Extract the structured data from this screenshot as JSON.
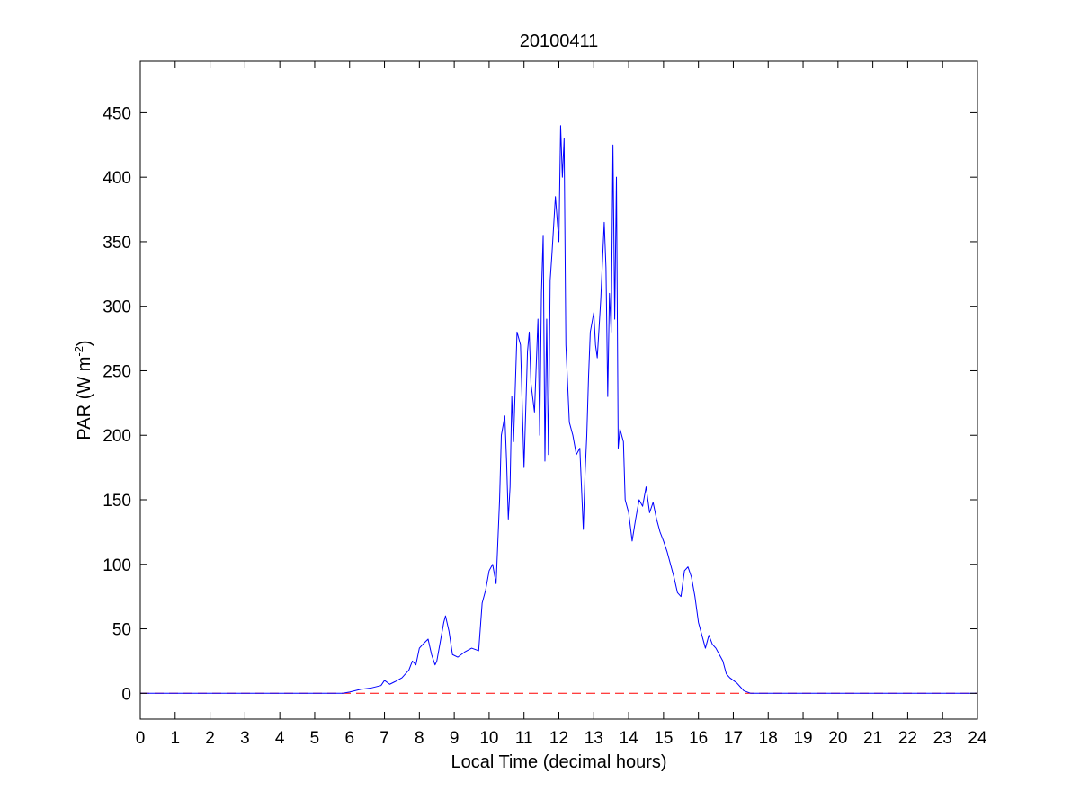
{
  "chart_data": {
    "type": "line",
    "title": "20100411",
    "xlabel": "Local Time (decimal hours)",
    "ylabel_main": "PAR (W m",
    "ylabel_sup": "-2",
    "ylabel_close": ")",
    "xlim": [
      0,
      24
    ],
    "ylim": [
      -20,
      490
    ],
    "xticks": [
      0,
      1,
      2,
      3,
      4,
      5,
      6,
      7,
      8,
      9,
      10,
      11,
      12,
      13,
      14,
      15,
      16,
      17,
      18,
      19,
      20,
      21,
      22,
      23,
      24
    ],
    "yticks": [
      0,
      50,
      100,
      150,
      200,
      250,
      300,
      350,
      400,
      450
    ],
    "grid": false,
    "series": [
      {
        "color": "#0000ff",
        "style": "solid",
        "x": [
          0,
          5.8,
          6.0,
          6.3,
          6.6,
          6.9,
          7.0,
          7.15,
          7.3,
          7.5,
          7.7,
          7.8,
          7.9,
          8.0,
          8.1,
          8.25,
          8.35,
          8.45,
          8.5,
          8.6,
          8.7,
          8.75,
          8.85,
          8.95,
          9.1,
          9.3,
          9.5,
          9.7,
          9.8,
          9.9,
          10.0,
          10.1,
          10.2,
          10.3,
          10.35,
          10.45,
          10.5,
          10.55,
          10.6,
          10.65,
          10.7,
          10.8,
          10.9,
          11.0,
          11.1,
          11.15,
          11.2,
          11.3,
          11.4,
          11.45,
          11.5,
          11.55,
          11.6,
          11.65,
          11.7,
          11.75,
          11.8,
          11.9,
          12.0,
          12.05,
          12.1,
          12.15,
          12.2,
          12.3,
          12.4,
          12.5,
          12.6,
          12.7,
          12.75,
          12.8,
          12.85,
          12.9,
          13.0,
          13.05,
          13.1,
          13.2,
          13.3,
          13.35,
          13.4,
          13.45,
          13.5,
          13.55,
          13.6,
          13.65,
          13.7,
          13.75,
          13.8,
          13.85,
          13.9,
          14.0,
          14.1,
          14.2,
          14.3,
          14.4,
          14.5,
          14.6,
          14.7,
          14.8,
          14.9,
          15.0,
          15.1,
          15.2,
          15.3,
          15.4,
          15.5,
          15.6,
          15.7,
          15.8,
          15.9,
          16.0,
          16.1,
          16.2,
          16.3,
          16.4,
          16.5,
          16.6,
          16.7,
          16.8,
          16.9,
          17.0,
          17.1,
          17.2,
          17.3,
          17.5,
          17.7,
          17.9,
          18.1,
          18.3,
          18.5,
          18.7,
          18.85,
          19.0,
          24
        ],
        "y": [
          0,
          0,
          1,
          3,
          4,
          6,
          10,
          7,
          9,
          12,
          18,
          25,
          22,
          35,
          38,
          42,
          30,
          22,
          25,
          40,
          55,
          60,
          48,
          30,
          28,
          32,
          35,
          33,
          70,
          80,
          95,
          100,
          85,
          150,
          200,
          215,
          180,
          135,
          160,
          230,
          195,
          280,
          270,
          175,
          265,
          280,
          240,
          218,
          290,
          200,
          310,
          355,
          180,
          290,
          185,
          320,
          340,
          385,
          350,
          440,
          400,
          430,
          270,
          210,
          200,
          185,
          190,
          127,
          170,
          200,
          245,
          280,
          295,
          270,
          260,
          305,
          365,
          330,
          230,
          310,
          280,
          425,
          290,
          400,
          190,
          205,
          200,
          195,
          150,
          140,
          118,
          135,
          150,
          145,
          160,
          140,
          148,
          135,
          125,
          118,
          110,
          100,
          90,
          78,
          75,
          95,
          98,
          90,
          75,
          55,
          45,
          35,
          45,
          38,
          35,
          30,
          25,
          15,
          12,
          10,
          8,
          5,
          2,
          0,
          0,
          0,
          0,
          0,
          0,
          0,
          0,
          0,
          0
        ]
      },
      {
        "color": "#ff0000",
        "style": "dashed",
        "x": [
          0,
          24
        ],
        "y": [
          0,
          0
        ]
      }
    ]
  }
}
